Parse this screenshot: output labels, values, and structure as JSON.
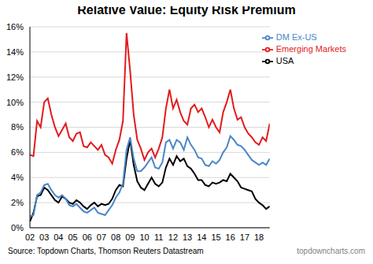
{
  "chart_data": {
    "type": "line",
    "title": "Relative Value: Equity Risk Premium",
    "source": "Source: Topdown Charts, Thomson Reuters Datastream",
    "watermark": "topdowncharts.com",
    "x": [
      2002,
      2002.25,
      2002.5,
      2002.75,
      2003,
      2003.25,
      2003.5,
      2003.75,
      2004,
      2004.25,
      2004.5,
      2004.75,
      2005,
      2005.25,
      2005.5,
      2005.75,
      2006,
      2006.25,
      2006.5,
      2006.75,
      2007,
      2007.25,
      2007.5,
      2007.75,
      2008,
      2008.25,
      2008.5,
      2008.75,
      2009,
      2009.25,
      2009.5,
      2009.75,
      2010,
      2010.25,
      2010.5,
      2010.75,
      2011,
      2011.25,
      2011.5,
      2011.75,
      2012,
      2012.25,
      2012.5,
      2012.75,
      2013,
      2013.25,
      2013.5,
      2013.75,
      2014,
      2014.25,
      2014.5,
      2014.75,
      2015,
      2015.25,
      2015.5,
      2015.75,
      2016,
      2016.25,
      2016.5,
      2016.75,
      2017,
      2017.25,
      2017.5,
      2017.75,
      2018,
      2018.25,
      2018.5,
      2018.75
    ],
    "series": [
      {
        "name": "Emerging Markets",
        "color": "#e31a1c",
        "values": [
          5.8,
          5.7,
          8.5,
          8.0,
          10.0,
          10.3,
          9.0,
          8.0,
          7.3,
          7.8,
          8.3,
          7.2,
          6.9,
          7.5,
          7.6,
          6.5,
          6.4,
          6.8,
          6.5,
          6.2,
          6.6,
          5.8,
          5.6,
          5.1,
          6.2,
          7.0,
          8.5,
          15.5,
          12.5,
          9.0,
          7.0,
          6.3,
          5.4,
          6.0,
          6.3,
          5.6,
          6.3,
          7.2,
          9.5,
          11.0,
          9.5,
          10.2,
          9.2,
          8.5,
          8.2,
          9.5,
          9.8,
          9.2,
          9.5,
          8.8,
          8.0,
          8.6,
          8.0,
          7.6,
          9.2,
          10.0,
          11.0,
          9.5,
          8.6,
          8.8,
          8.0,
          7.5,
          7.2,
          6.8,
          6.6,
          7.2,
          6.9,
          8.3
        ]
      },
      {
        "name": "USA",
        "color": "#000000",
        "values": [
          0.5,
          1.2,
          2.5,
          2.6,
          3.2,
          3.0,
          2.6,
          2.2,
          2.0,
          2.5,
          2.3,
          2.0,
          1.9,
          2.2,
          2.0,
          1.7,
          1.5,
          1.8,
          2.0,
          1.7,
          1.9,
          1.8,
          1.9,
          2.3,
          3.0,
          3.4,
          3.3,
          5.5,
          7.0,
          5.0,
          3.7,
          3.2,
          3.0,
          3.5,
          4.0,
          3.5,
          3.3,
          3.6,
          4.8,
          5.5,
          5.0,
          5.7,
          5.3,
          5.5,
          4.9,
          4.7,
          4.3,
          3.8,
          3.8,
          3.4,
          3.3,
          3.6,
          3.5,
          3.6,
          3.8,
          3.7,
          4.3,
          4.0,
          3.7,
          3.2,
          3.1,
          3.0,
          2.9,
          2.3,
          2.0,
          1.8,
          1.5,
          1.7
        ]
      },
      {
        "name": "DM Ex-US",
        "color": "#4a86c8",
        "values": [
          0.9,
          1.0,
          2.6,
          2.8,
          3.4,
          3.5,
          3.0,
          2.6,
          2.4,
          2.6,
          2.3,
          1.8,
          1.7,
          1.9,
          1.6,
          1.3,
          1.2,
          1.4,
          1.6,
          1.2,
          1.1,
          1.0,
          1.4,
          1.8,
          2.4,
          2.8,
          3.5,
          6.2,
          7.2,
          5.5,
          4.5,
          4.5,
          4.8,
          5.2,
          5.6,
          4.8,
          4.7,
          5.2,
          6.8,
          7.0,
          6.3,
          7.0,
          6.8,
          6.2,
          7.2,
          6.6,
          6.2,
          5.6,
          5.5,
          5.0,
          4.9,
          5.3,
          5.1,
          5.4,
          6.0,
          6.4,
          7.3,
          7.0,
          6.6,
          6.5,
          6.2,
          5.8,
          5.4,
          5.2,
          5.0,
          5.2,
          5.0,
          5.5
        ]
      }
    ],
    "xlim": [
      2002,
      2018.75
    ],
    "xticks": [
      {
        "value": 2002,
        "label": "02"
      },
      {
        "value": 2003,
        "label": "03"
      },
      {
        "value": 2004,
        "label": "04"
      },
      {
        "value": 2005,
        "label": "05"
      },
      {
        "value": 2006,
        "label": "06"
      },
      {
        "value": 2007,
        "label": "07"
      },
      {
        "value": 2008,
        "label": "08"
      },
      {
        "value": 2009,
        "label": "09"
      },
      {
        "value": 2010,
        "label": "10"
      },
      {
        "value": 2011,
        "label": "11"
      },
      {
        "value": 2012,
        "label": "12"
      },
      {
        "value": 2013,
        "label": "13"
      },
      {
        "value": 2014,
        "label": "14"
      },
      {
        "value": 2015,
        "label": "15"
      },
      {
        "value": 2016,
        "label": "16"
      },
      {
        "value": 2017,
        "label": "17"
      },
      {
        "value": 2018,
        "label": "18"
      }
    ],
    "ylim": [
      0,
      16
    ],
    "yticks": [
      {
        "value": 0,
        "label": "0%"
      },
      {
        "value": 2,
        "label": "2%"
      },
      {
        "value": 4,
        "label": "4%"
      },
      {
        "value": 6,
        "label": "6%"
      },
      {
        "value": 8,
        "label": "8%"
      },
      {
        "value": 10,
        "label": "10%"
      },
      {
        "value": 12,
        "label": "12%"
      },
      {
        "value": 14,
        "label": "14%"
      },
      {
        "value": 16,
        "label": "16%"
      }
    ],
    "grid": true,
    "legend": "top right"
  }
}
